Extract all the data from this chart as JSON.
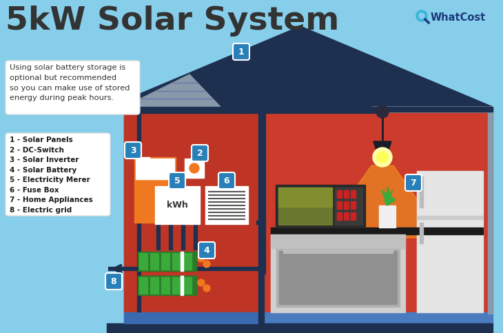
{
  "title": "5kW Solar System",
  "title_fontsize": 34,
  "title_color": "#333333",
  "bg_color": "#87CEEB",
  "house_wall_color": "#CC3B2B",
  "house_roof_color": "#1e3050",
  "house_floor2_color": "#4a7bbf",
  "legend_items": [
    "1 - Solar Panels",
    "2 - DC-Switch",
    "3 - Solar Inverter",
    "4 - Solar Battery",
    "5 - Electricity Merer",
    "6 - Fuse Box",
    "7 - Home Appliances",
    "8 - Electric grid"
  ],
  "note_text": "Using solar battery storage is\noptional but recommended\nso you can make use of stored\nenergy during peak hours.",
  "label_bg_color": "#2980b9",
  "whatcost_color": "#1a3a7a",
  "whatcost_accent": "#3ab5d8",
  "wire_color": "#1e3050",
  "orange": "#f07820",
  "green_dark": "#2a7a2a",
  "green_mid": "#3aaa3a"
}
